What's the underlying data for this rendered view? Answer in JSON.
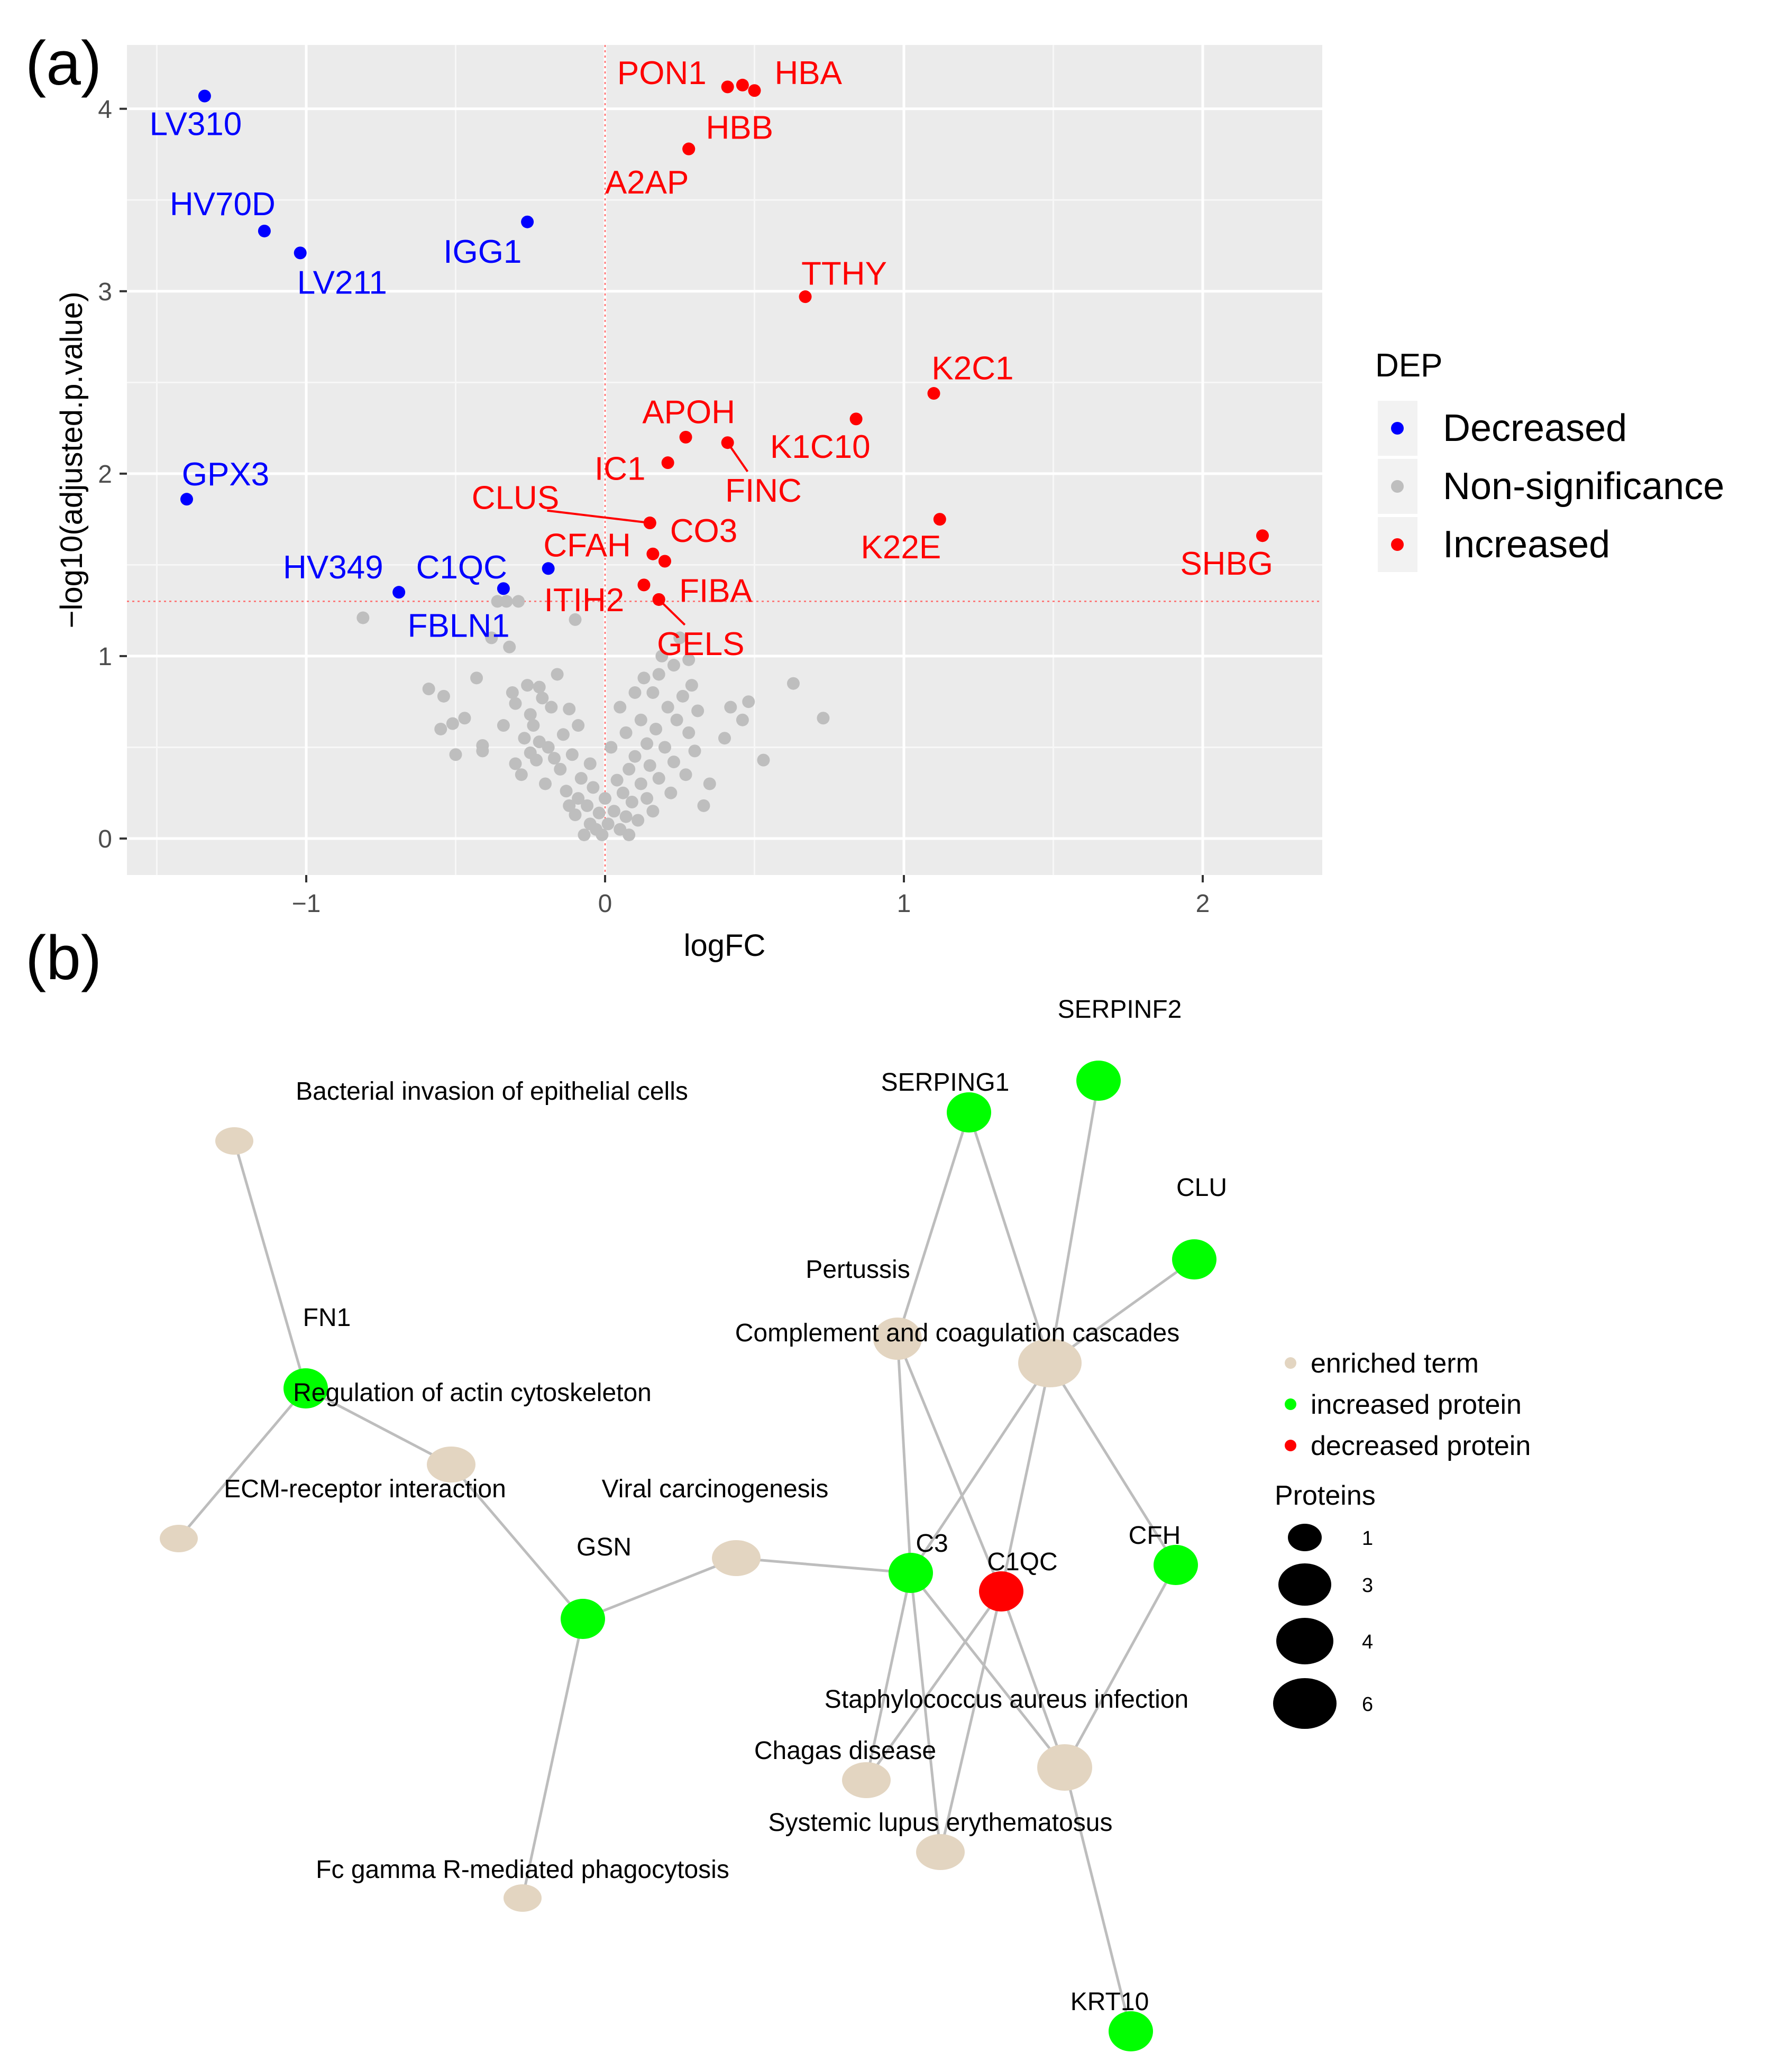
{
  "panel_a": {
    "label": "(a)",
    "chart_data": {
      "type": "scatter",
      "xlabel": "logFC",
      "ylabel": "−log10(adjusted.p.value)",
      "xlim": [
        -1.6,
        2.4
      ],
      "ylim": [
        -0.2,
        4.35
      ],
      "xticks": [
        -1,
        0,
        1,
        2
      ],
      "yticks": [
        0,
        1,
        2,
        3,
        4
      ],
      "tick_labels_x": [
        "−1",
        "0",
        "1",
        "2"
      ],
      "tick_labels_y": [
        "0",
        "1",
        "2",
        "3",
        "4"
      ],
      "grid": true,
      "threshold_y": 1.3,
      "threshold_x": 0,
      "legend": {
        "title": "DEP",
        "position": "right",
        "entries": [
          {
            "label": "Decreased",
            "color": "#0000ff"
          },
          {
            "label": "Non-significance",
            "color": "#bebebe"
          },
          {
            "label": "Increased",
            "color": "#ff0000"
          }
        ]
      },
      "series": [
        {
          "name": "Decreased",
          "color": "#0000ff",
          "points": [
            {
              "x": -1.34,
              "y": 4.07,
              "label": "LV310",
              "lx": -1.37,
              "ly": 3.92
            },
            {
              "x": -1.14,
              "y": 3.33,
              "label": "HV70D",
              "lx": -1.28,
              "ly": 3.48
            },
            {
              "x": -1.02,
              "y": 3.21,
              "label": "LV211",
              "lx": -0.88,
              "ly": 3.05
            },
            {
              "x": -0.26,
              "y": 3.38,
              "label": "IGG1",
              "lx": -0.41,
              "ly": 3.22
            },
            {
              "x": -1.4,
              "y": 1.86,
              "label": "GPX3",
              "lx": -1.27,
              "ly": 2.0
            },
            {
              "x": -0.69,
              "y": 1.35,
              "label": "HV349",
              "lx": -0.91,
              "ly": 1.49
            },
            {
              "x": -0.34,
              "y": 1.37,
              "label": "C1QC",
              "lx": -0.48,
              "ly": 1.49
            },
            {
              "x": -0.19,
              "y": 1.48,
              "label": "FBLN1",
              "lx": -0.49,
              "ly": 1.17
            }
          ]
        },
        {
          "name": "Increased",
          "color": "#ff0000",
          "points": [
            {
              "x": 0.41,
              "y": 4.12,
              "label": "PON1",
              "lx": 0.19,
              "ly": 4.2
            },
            {
              "x": 0.46,
              "y": 4.13,
              "label": "HBA",
              "lx": 0.68,
              "ly": 4.2
            },
            {
              "x": 0.5,
              "y": 4.1,
              "label": "",
              "lx": null,
              "ly": null
            },
            {
              "x": 0.28,
              "y": 3.78,
              "label": "HBB",
              "lx": 0.45,
              "ly": 3.9
            },
            {
              "x": 0.28,
              "y": 3.78,
              "label": "A2AP",
              "lx": 0.14,
              "ly": 3.6
            },
            {
              "x": 0.67,
              "y": 2.97,
              "label": "TTHY",
              "lx": 0.8,
              "ly": 3.1
            },
            {
              "x": 1.1,
              "y": 2.44,
              "label": "K2C1",
              "lx": 1.23,
              "ly": 2.58
            },
            {
              "x": 0.84,
              "y": 2.3,
              "label": "K1C10",
              "lx": 0.72,
              "ly": 2.15
            },
            {
              "x": 0.27,
              "y": 2.2,
              "label": "APOH",
              "lx": 0.28,
              "ly": 2.34
            },
            {
              "x": 0.41,
              "y": 2.17,
              "label": "FINC",
              "lx": 0.53,
              "ly": 1.91
            },
            {
              "x": 0.21,
              "y": 2.06,
              "label": "IC1",
              "lx": 0.05,
              "ly": 2.03
            },
            {
              "x": 0.15,
              "y": 1.73,
              "label": "CLUS",
              "lx": -0.3,
              "ly": 1.87
            },
            {
              "x": 0.15,
              "y": 1.73,
              "label": "CO3",
              "lx": 0.33,
              "ly": 1.69
            },
            {
              "x": 0.16,
              "y": 1.56,
              "label": "CFAH",
              "lx": -0.06,
              "ly": 1.61
            },
            {
              "x": 0.2,
              "y": 1.52,
              "label": "",
              "lx": null,
              "ly": null
            },
            {
              "x": 1.12,
              "y": 1.75,
              "label": "K22E",
              "lx": 0.99,
              "ly": 1.6
            },
            {
              "x": 2.2,
              "y": 1.66,
              "label": "SHBG",
              "lx": 2.08,
              "ly": 1.51
            },
            {
              "x": 0.13,
              "y": 1.39,
              "label": "ITIH2",
              "lx": -0.07,
              "ly": 1.31
            },
            {
              "x": 0.18,
              "y": 1.31,
              "label": "FIBA",
              "lx": 0.37,
              "ly": 1.36
            },
            {
              "x": 0.18,
              "y": 1.31,
              "label": "GELS",
              "lx": 0.32,
              "ly": 1.07
            }
          ]
        },
        {
          "name": "Non-significance",
          "color": "#bebebe",
          "points": [
            {
              "x": -0.81,
              "y": 1.21
            },
            {
              "x": -0.59,
              "y": 0.82
            },
            {
              "x": -0.55,
              "y": 0.6
            },
            {
              "x": -0.51,
              "y": 0.63
            },
            {
              "x": -0.5,
              "y": 0.46
            },
            {
              "x": -0.43,
              "y": 0.88
            },
            {
              "x": -0.41,
              "y": 0.51
            },
            {
              "x": -0.41,
              "y": 0.48
            },
            {
              "x": -0.38,
              "y": 1.1
            },
            {
              "x": -0.36,
              "y": 1.3
            },
            {
              "x": -0.34,
              "y": 0.62
            },
            {
              "x": -0.33,
              "y": 1.3
            },
            {
              "x": -0.32,
              "y": 1.05
            },
            {
              "x": -0.31,
              "y": 0.8
            },
            {
              "x": -0.3,
              "y": 0.74
            },
            {
              "x": -0.3,
              "y": 0.41
            },
            {
              "x": -0.29,
              "y": 1.3
            },
            {
              "x": -0.28,
              "y": 0.35
            },
            {
              "x": -0.27,
              "y": 0.55
            },
            {
              "x": -0.26,
              "y": 0.84
            },
            {
              "x": -0.25,
              "y": 0.68
            },
            {
              "x": -0.25,
              "y": 0.47
            },
            {
              "x": -0.24,
              "y": 0.62
            },
            {
              "x": -0.23,
              "y": 0.43
            },
            {
              "x": -0.22,
              "y": 0.83
            },
            {
              "x": -0.22,
              "y": 0.53
            },
            {
              "x": -0.21,
              "y": 0.77
            },
            {
              "x": -0.2,
              "y": 0.3
            },
            {
              "x": -0.19,
              "y": 0.5
            },
            {
              "x": -0.18,
              "y": 0.72
            },
            {
              "x": -0.17,
              "y": 0.44
            },
            {
              "x": -0.16,
              "y": 0.9
            },
            {
              "x": -0.15,
              "y": 0.38
            },
            {
              "x": -0.14,
              "y": 0.57
            },
            {
              "x": -0.13,
              "y": 0.26
            },
            {
              "x": -0.12,
              "y": 0.71
            },
            {
              "x": -0.12,
              "y": 0.18
            },
            {
              "x": -0.11,
              "y": 0.46
            },
            {
              "x": -0.1,
              "y": 1.2
            },
            {
              "x": -0.1,
              "y": 0.13
            },
            {
              "x": -0.09,
              "y": 0.62
            },
            {
              "x": -0.09,
              "y": 0.22
            },
            {
              "x": -0.08,
              "y": 0.33
            },
            {
              "x": -0.07,
              "y": 0.02
            },
            {
              "x": -0.06,
              "y": 0.18
            },
            {
              "x": -0.05,
              "y": 0.08
            },
            {
              "x": -0.05,
              "y": 0.41
            },
            {
              "x": -0.04,
              "y": 0.28
            },
            {
              "x": -0.03,
              "y": 0.05
            },
            {
              "x": -0.02,
              "y": 0.14
            },
            {
              "x": -0.01,
              "y": 0.02
            },
            {
              "x": 0.0,
              "y": 0.22
            },
            {
              "x": 0.01,
              "y": 0.08
            },
            {
              "x": 0.02,
              "y": 0.5
            },
            {
              "x": 0.03,
              "y": 0.15
            },
            {
              "x": 0.04,
              "y": 0.32
            },
            {
              "x": 0.05,
              "y": 0.05
            },
            {
              "x": 0.05,
              "y": 0.72
            },
            {
              "x": 0.06,
              "y": 0.25
            },
            {
              "x": 0.07,
              "y": 0.12
            },
            {
              "x": 0.07,
              "y": 0.58
            },
            {
              "x": 0.08,
              "y": 0.38
            },
            {
              "x": 0.08,
              "y": 0.02
            },
            {
              "x": 0.09,
              "y": 0.2
            },
            {
              "x": 0.1,
              "y": 0.8
            },
            {
              "x": 0.1,
              "y": 0.45
            },
            {
              "x": 0.11,
              "y": 0.1
            },
            {
              "x": 0.12,
              "y": 0.3
            },
            {
              "x": 0.12,
              "y": 0.65
            },
            {
              "x": 0.13,
              "y": 0.88
            },
            {
              "x": 0.14,
              "y": 0.22
            },
            {
              "x": 0.14,
              "y": 0.52
            },
            {
              "x": 0.15,
              "y": 0.4
            },
            {
              "x": 0.16,
              "y": 0.8
            },
            {
              "x": 0.16,
              "y": 0.15
            },
            {
              "x": 0.17,
              "y": 0.6
            },
            {
              "x": 0.18,
              "y": 0.9
            },
            {
              "x": 0.18,
              "y": 0.33
            },
            {
              "x": 0.19,
              "y": 1.0
            },
            {
              "x": 0.2,
              "y": 0.5
            },
            {
              "x": 0.21,
              "y": 0.72
            },
            {
              "x": 0.22,
              "y": 0.25
            },
            {
              "x": 0.23,
              "y": 0.95
            },
            {
              "x": 0.23,
              "y": 0.42
            },
            {
              "x": 0.24,
              "y": 0.65
            },
            {
              "x": 0.25,
              "y": 1.1
            },
            {
              "x": 0.26,
              "y": 0.78
            },
            {
              "x": 0.27,
              "y": 0.35
            },
            {
              "x": 0.28,
              "y": 0.58
            },
            {
              "x": 0.28,
              "y": 0.98
            },
            {
              "x": 0.3,
              "y": 0.48
            },
            {
              "x": 0.31,
              "y": 0.7
            },
            {
              "x": 0.33,
              "y": 0.18
            },
            {
              "x": 0.35,
              "y": 0.3
            },
            {
              "x": 0.4,
              "y": 0.55
            },
            {
              "x": 0.42,
              "y": 0.72
            },
            {
              "x": 0.46,
              "y": 0.65
            },
            {
              "x": 0.48,
              "y": 0.75
            },
            {
              "x": 0.53,
              "y": 0.43
            },
            {
              "x": 0.63,
              "y": 0.85
            },
            {
              "x": 0.73,
              "y": 0.66
            },
            {
              "x": -0.54,
              "y": 0.78
            },
            {
              "x": -0.47,
              "y": 0.66
            },
            {
              "x": 0.29,
              "y": 0.84
            }
          ]
        }
      ],
      "leader_lines": [
        "CLUS",
        "FINC",
        "GELS"
      ]
    }
  },
  "panel_b": {
    "label": "(b)",
    "chart_data": {
      "type": "network",
      "nodes": [
        {
          "id": "bact",
          "label": "Bacterial invasion of epithelial cells",
          "kind": "term",
          "proteins": 1
        },
        {
          "id": "fn1",
          "label": "FN1",
          "kind": "increased"
        },
        {
          "id": "actin",
          "label": "Regulation of actin cytoskeleton",
          "kind": "term",
          "proteins": 2
        },
        {
          "id": "ecm",
          "label": "ECM-receptor interaction",
          "kind": "term",
          "proteins": 1
        },
        {
          "id": "gsn",
          "label": "GSN",
          "kind": "increased"
        },
        {
          "id": "viral",
          "label": "Viral carcinogenesis",
          "kind": "term",
          "proteins": 2
        },
        {
          "id": "fcg",
          "label": "Fc gamma R-mediated phagocytosis",
          "kind": "term",
          "proteins": 1
        },
        {
          "id": "serping1",
          "label": "SERPING1",
          "kind": "increased"
        },
        {
          "id": "serpinf2",
          "label": "SERPINF2",
          "kind": "increased"
        },
        {
          "id": "clu",
          "label": "CLU",
          "kind": "increased"
        },
        {
          "id": "pert",
          "label": "Pertussis",
          "kind": "term",
          "proteins": 3
        },
        {
          "id": "comp",
          "label": "Complement and coagulation cascades",
          "kind": "term",
          "proteins": 6
        },
        {
          "id": "c3",
          "label": "C3",
          "kind": "increased"
        },
        {
          "id": "c1qc",
          "label": "C1QC",
          "kind": "decreased"
        },
        {
          "id": "cfh",
          "label": "CFH",
          "kind": "increased"
        },
        {
          "id": "staph",
          "label": "Staphylococcus aureus infection",
          "kind": "term",
          "proteins": 4
        },
        {
          "id": "chagas",
          "label": "Chagas disease",
          "kind": "term",
          "proteins": 2
        },
        {
          "id": "sle",
          "label": "Systemic lupus erythematosus",
          "kind": "term",
          "proteins": 2
        },
        {
          "id": "krt10",
          "label": "KRT10",
          "kind": "increased"
        }
      ],
      "edges": [
        [
          "bact",
          "fn1"
        ],
        [
          "fn1",
          "actin"
        ],
        [
          "fn1",
          "ecm"
        ],
        [
          "actin",
          "gsn"
        ],
        [
          "gsn",
          "viral"
        ],
        [
          "gsn",
          "fcg"
        ],
        [
          "viral",
          "c3"
        ],
        [
          "serping1",
          "pert"
        ],
        [
          "serping1",
          "comp"
        ],
        [
          "serpinf2",
          "comp"
        ],
        [
          "clu",
          "comp"
        ],
        [
          "pert",
          "c3"
        ],
        [
          "pert",
          "c1qc"
        ],
        [
          "comp",
          "c3"
        ],
        [
          "comp",
          "c1qc"
        ],
        [
          "comp",
          "cfh"
        ],
        [
          "c3",
          "staph"
        ],
        [
          "c3",
          "chagas"
        ],
        [
          "c3",
          "sle"
        ],
        [
          "c1qc",
          "staph"
        ],
        [
          "c1qc",
          "chagas"
        ],
        [
          "c1qc",
          "sle"
        ],
        [
          "cfh",
          "staph"
        ],
        [
          "staph",
          "krt10"
        ]
      ],
      "legend": {
        "entries": [
          {
            "label": "enriched term",
            "color": "#e3d5c1"
          },
          {
            "label": "increased protein",
            "color": "#00ff00"
          },
          {
            "label": "decreased protein",
            "color": "#ff0000"
          }
        ],
        "size_title": "Proteins",
        "sizes": [
          "1",
          "3",
          "4",
          "6"
        ]
      },
      "colors": {
        "term": "#e3d5c1",
        "increased": "#00ff00",
        "decreased": "#ff0000",
        "edge": "#bdbdbd"
      }
    }
  }
}
